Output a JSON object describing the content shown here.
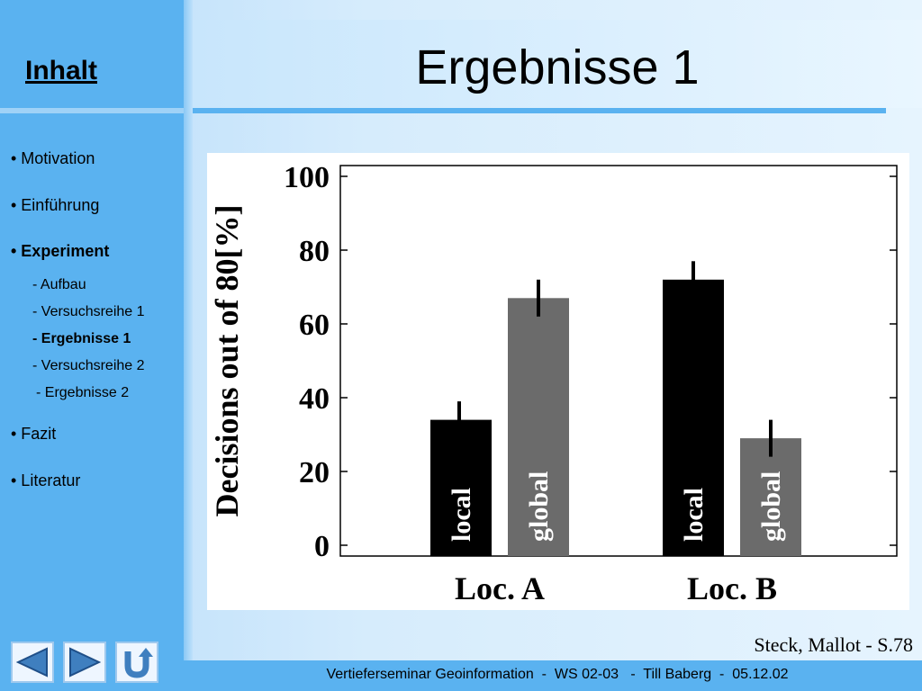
{
  "sidebar": {
    "title": "Inhalt",
    "items": [
      {
        "label": "• Motivation"
      },
      {
        "label": "• Einführung"
      },
      {
        "label": "• Experiment"
      },
      {
        "label": "• Fazit"
      },
      {
        "label": "• Literatur"
      }
    ],
    "sub_items": [
      {
        "label": "- Aufbau"
      },
      {
        "label": "- Versuchsreihe 1"
      },
      {
        "label": "- Ergebnisse 1"
      },
      {
        "label": "- Versuchsreihe 2"
      },
      {
        "label": "- Ergebnisse 2"
      }
    ]
  },
  "slide": {
    "title": "Ergebnisse 1",
    "source": "Steck, Mallot - S.78"
  },
  "footer": {
    "text": "Vertieferseminar Geoinformation  -  WS 02-03   -  Till Baberg  -  05.12.02"
  },
  "nav_buttons": {
    "icons": [
      "arrow-left-icon",
      "arrow-right-icon",
      "u-turn-icon"
    ]
  },
  "colors": {
    "sidebar": "#5ab2f0",
    "local_bar": "#000000",
    "global_bar": "#6b6b6b"
  },
  "chart_data": {
    "type": "bar",
    "categories": [
      "Loc. A",
      "Loc. B"
    ],
    "series": [
      {
        "name": "local",
        "values": [
          34,
          72
        ],
        "errors": [
          5,
          5
        ]
      },
      {
        "name": "global",
        "values": [
          67,
          29
        ],
        "errors": [
          5,
          5
        ]
      }
    ],
    "ylabel": "Decisions out of 80[%]",
    "yticks": [
      "0",
      "20",
      "40",
      "60",
      "80",
      "100"
    ],
    "ylim": [
      0,
      100
    ]
  }
}
